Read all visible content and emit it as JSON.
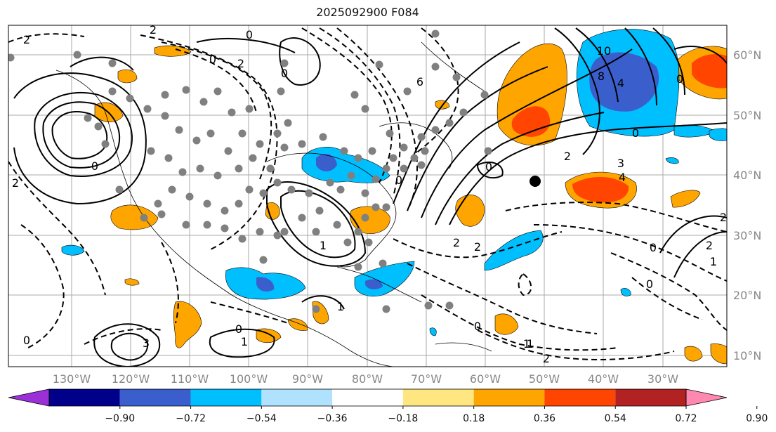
{
  "title": "2025092900 F084",
  "longitude_labels": [
    "130°W",
    "120°W",
    "110°W",
    "100°W",
    "90°W",
    "80°W",
    "70°W",
    "60°W",
    "50°W",
    "40°W",
    "30°W"
  ],
  "latitude_labels": [
    "60°N",
    "50°N",
    "40°N",
    "30°N",
    "20°N",
    "10°N"
  ],
  "colorbar": {
    "tick_labels": [
      "−0.90",
      "−0.72",
      "−0.54",
      "−0.36",
      "−0.18",
      "0.18",
      "0.36",
      "0.54",
      "0.72",
      "0.90"
    ],
    "colors": [
      "#9b30d9",
      "#00008b",
      "#3a5fcd",
      "#00bfff",
      "#b0e2ff",
      "#ffffff",
      "#ffe680",
      "#ffa500",
      "#ff4500",
      "#b22222",
      "#ff88b0"
    ]
  },
  "contour_labels": [
    "2",
    "2",
    "0",
    "2",
    "0",
    "0",
    "6",
    "10",
    "8",
    "4",
    "0",
    "0",
    "3",
    "0",
    "0",
    "0",
    "3",
    "2",
    "4",
    "1",
    "1",
    "0",
    "2",
    "0",
    "2",
    "1",
    "1",
    "0",
    "1",
    "0",
    "0",
    "2",
    "1",
    "2",
    "2",
    "1",
    "2"
  ],
  "positive_color": "#ffa500",
  "negative_color": "#00bfff"
}
